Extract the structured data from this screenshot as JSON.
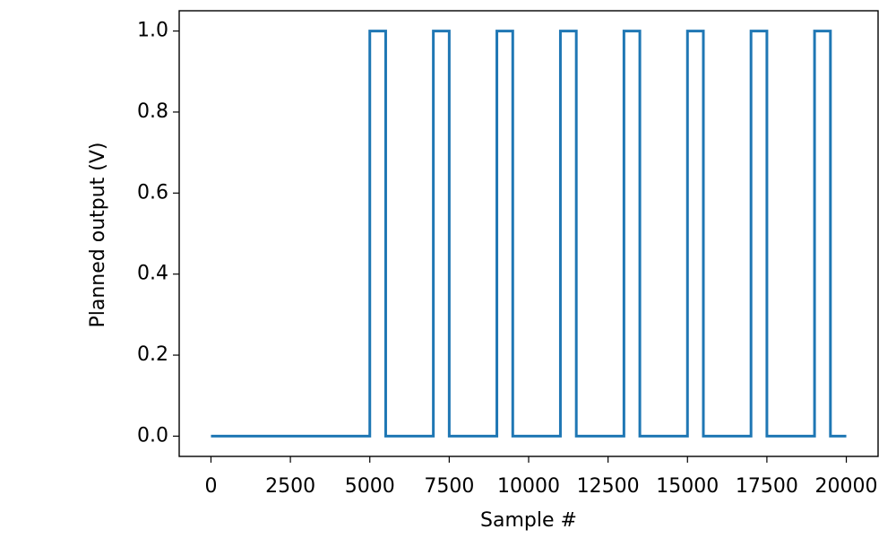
{
  "chart_data": {
    "type": "line",
    "x_label": "Sample #",
    "y_label": "Planned output (V)",
    "x": [
      0,
      5000,
      5000,
      5500,
      5500,
      7000,
      7000,
      7500,
      7500,
      9000,
      9000,
      9500,
      9500,
      11000,
      11000,
      11500,
      11500,
      13000,
      13000,
      13500,
      13500,
      15000,
      15000,
      15500,
      15500,
      17000,
      17000,
      17500,
      17500,
      19000,
      19000,
      19500,
      19500,
      20000
    ],
    "series": [
      {
        "color": "#1f77b4",
        "values": [
          0,
          0,
          1,
          1,
          0,
          0,
          1,
          1,
          0,
          0,
          1,
          1,
          0,
          0,
          1,
          1,
          0,
          0,
          1,
          1,
          0,
          0,
          1,
          1,
          0,
          0,
          1,
          1,
          0,
          0,
          1,
          1,
          0,
          0
        ]
      }
    ],
    "xlim": [
      -1000,
      21000
    ],
    "ylim": [
      -0.05,
      1.05
    ],
    "xticks": [
      0,
      2500,
      5000,
      7500,
      10000,
      12500,
      15000,
      17500,
      20000
    ],
    "yticks": [
      {
        "value": 0,
        "label": "0.0"
      },
      0.2,
      0.4,
      0.6,
      0.8,
      {
        "value": 1,
        "label": "1.0"
      }
    ],
    "grid": false
  }
}
